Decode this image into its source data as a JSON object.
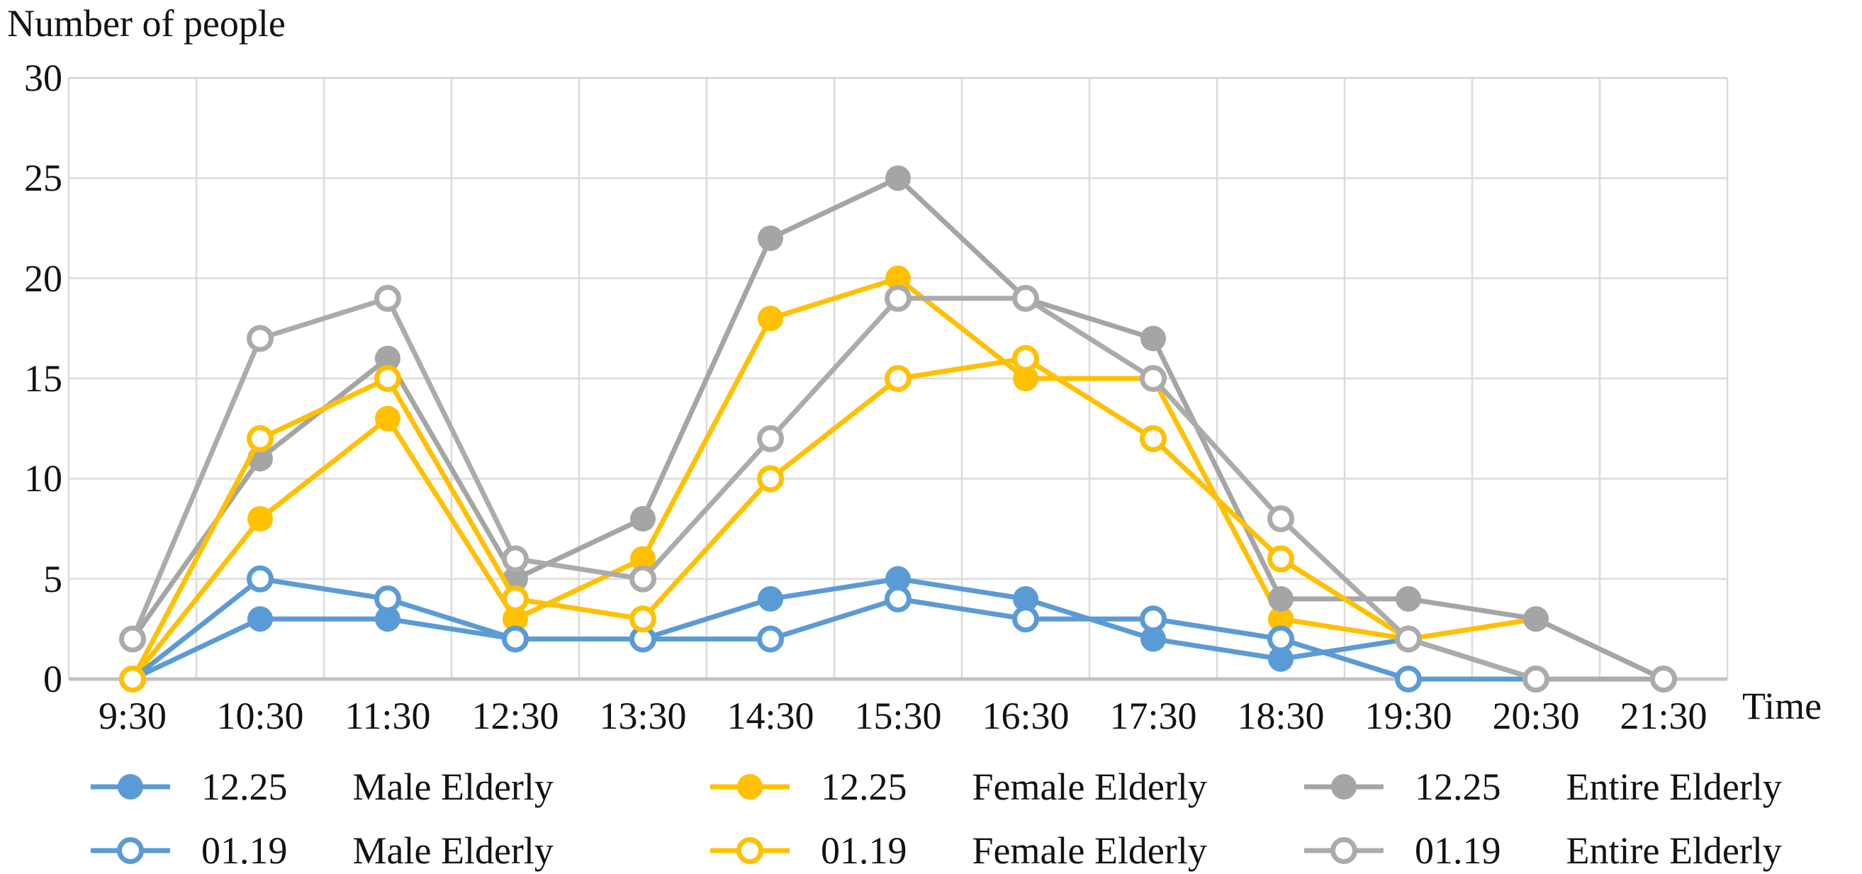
{
  "title": "Number of people",
  "x_axis": {
    "label": "Time"
  },
  "y_axis": {
    "ticks": [
      0,
      5,
      10,
      15,
      20,
      25,
      30
    ]
  },
  "colors": {
    "male": "#5B9BD5",
    "female": "#FFC000",
    "entire": "#A5A5A5",
    "entire_open": "#ABABAB",
    "gridline": "#DBDBDB",
    "gridline_top": "#D2D2D2",
    "axis_line": "#C2C2C2",
    "marker_open_fill": "#FFFFFF",
    "text": "#121212"
  },
  "chart_data": {
    "type": "line",
    "title": "Number of people",
    "xlabel": "Time",
    "ylabel": "Number of people",
    "ylim": [
      0,
      30
    ],
    "grid": true,
    "legend_position": "bottom",
    "categories": [
      "9:30",
      "10:30",
      "11:30",
      "12:30",
      "13:30",
      "14:30",
      "15:30",
      "16:30",
      "17:30",
      "18:30",
      "19:30",
      "20:30",
      "21:30"
    ],
    "series": [
      {
        "date": "12.25",
        "name": "Male Elderly",
        "color": "#5B9BD5",
        "marker": "filled",
        "values": [
          0,
          3,
          3,
          2,
          2,
          4,
          5,
          4,
          2,
          1,
          2,
          0,
          0
        ]
      },
      {
        "date": "12.25",
        "name": "Female Elderly",
        "color": "#FFC000",
        "marker": "filled",
        "values": [
          0,
          8,
          13,
          3,
          6,
          18,
          20,
          15,
          15,
          3,
          2,
          3,
          0
        ]
      },
      {
        "date": "12.25",
        "name": "Entire Elderly",
        "color": "#A5A5A5",
        "marker": "filled",
        "values": [
          2,
          11,
          16,
          5,
          8,
          22,
          25,
          19,
          17,
          4,
          4,
          3,
          0
        ]
      },
      {
        "date": "01.19",
        "name": "Male Elderly",
        "color": "#5B9BD5",
        "marker": "open",
        "values": [
          0,
          5,
          4,
          2,
          2,
          2,
          4,
          3,
          3,
          2,
          0,
          0,
          0
        ]
      },
      {
        "date": "01.19",
        "name": "Female Elderly",
        "color": "#FFC000",
        "marker": "open",
        "values": [
          0,
          12,
          15,
          4,
          3,
          10,
          15,
          16,
          12,
          6,
          2,
          0,
          0
        ]
      },
      {
        "date": "01.19",
        "name": "Entire Elderly",
        "color": "#ABABAB",
        "marker": "open",
        "values": [
          2,
          17,
          19,
          6,
          5,
          12,
          19,
          19,
          15,
          8,
          2,
          0,
          0
        ]
      }
    ]
  },
  "legend": {
    "rows": [
      [
        0,
        1,
        2
      ],
      [
        3,
        4,
        5
      ]
    ]
  }
}
